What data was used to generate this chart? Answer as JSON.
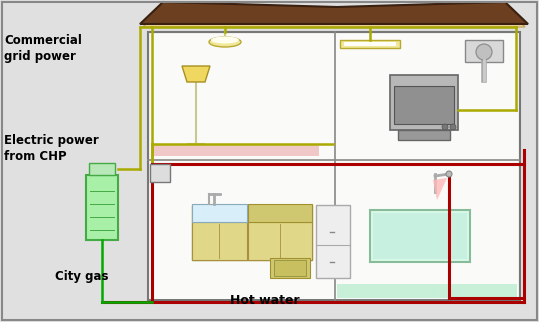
{
  "fig_width": 5.39,
  "fig_height": 3.22,
  "dpi": 100,
  "bg_color": "#e0e0e0",
  "electric_color": "#aaaa00",
  "hotwater_color": "#aa0000",
  "citygas_color": "#00aa00",
  "roof_color": "#6b3f1f",
  "soffit_color": "#f0d898",
  "wall_color": "#f5f5f0",
  "labels": {
    "commercial": "Commercial\ngrid power",
    "electric": "Electric power\nfrom CHP",
    "citygas": "City gas",
    "hotwater": "Hot water"
  },
  "label_fontsize": 8.5
}
